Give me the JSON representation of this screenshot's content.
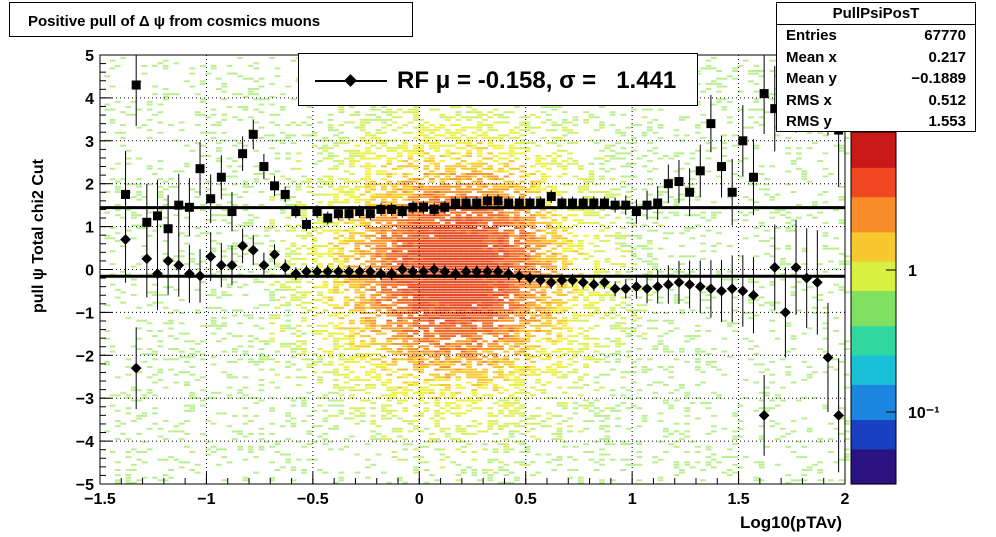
{
  "title": "Positive pull of Δ ψ from cosmics muons",
  "stats": {
    "name": "PullPsiPosT",
    "rows": [
      {
        "label": "Entries",
        "value": "67770"
      },
      {
        "label": "Mean x",
        "value": "0.217"
      },
      {
        "label": "Mean y",
        "value": "−0.1889"
      },
      {
        "label": "RMS x",
        "value": "0.512"
      },
      {
        "label": "RMS y",
        "value": "1.553"
      }
    ]
  },
  "legend": {
    "text": "RF μ = -0.158, σ =   1.441"
  },
  "chart_data": {
    "type": "scatter",
    "xlabel": "Log10(pTAv)",
    "ylabel": "pull ψ    Total chi2 Cut",
    "xlim": [
      -1.5,
      2
    ],
    "ylim": [
      -5,
      5
    ],
    "x_ticks": [
      "−1.5",
      "−1",
      "−0.5",
      "0",
      "0.5",
      "1",
      "1.5",
      "2"
    ],
    "y_ticks": [
      "−5",
      "−4",
      "−3",
      "−2",
      "−1",
      "0",
      "1",
      "2",
      "3",
      "4",
      "5"
    ],
    "z_ticks": [
      "10⁻¹",
      "1"
    ],
    "grid": true,
    "fit_lines": [
      {
        "name": "sigma",
        "y": 1.441
      },
      {
        "name": "mean",
        "y": -0.158
      }
    ],
    "series": [
      {
        "name": "sigma",
        "marker": "square",
        "x": [
          -1.38,
          -1.33,
          -1.28,
          -1.23,
          -1.18,
          -1.13,
          -1.08,
          -1.03,
          -0.98,
          -0.93,
          -0.88,
          -0.83,
          -0.78,
          -0.73,
          -0.68,
          -0.63,
          -0.58,
          -0.53,
          -0.48,
          -0.43,
          -0.38,
          -0.33,
          -0.28,
          -0.23,
          -0.18,
          -0.13,
          -0.08,
          -0.03,
          0.02,
          0.07,
          0.12,
          0.17,
          0.22,
          0.27,
          0.32,
          0.37,
          0.42,
          0.47,
          0.52,
          0.57,
          0.62,
          0.67,
          0.72,
          0.77,
          0.82,
          0.87,
          0.92,
          0.97,
          1.02,
          1.07,
          1.12,
          1.17,
          1.22,
          1.27,
          1.32,
          1.37,
          1.42,
          1.47,
          1.52,
          1.57,
          1.62,
          1.67,
          1.72,
          1.77,
          1.82,
          1.87,
          1.92,
          1.97
        ],
        "y": [
          1.75,
          4.3,
          1.1,
          1.25,
          0.95,
          1.5,
          1.45,
          2.35,
          1.65,
          2.15,
          1.35,
          2.7,
          3.15,
          2.4,
          1.95,
          1.75,
          1.35,
          1.05,
          1.35,
          1.2,
          1.3,
          1.3,
          1.35,
          1.3,
          1.4,
          1.4,
          1.35,
          1.45,
          1.45,
          1.4,
          1.45,
          1.55,
          1.55,
          1.55,
          1.6,
          1.6,
          1.55,
          1.55,
          1.55,
          1.55,
          1.7,
          1.55,
          1.55,
          1.55,
          1.55,
          1.55,
          1.5,
          1.5,
          1.35,
          1.5,
          1.55,
          2.0,
          2.05,
          1.8,
          2.3,
          3.4,
          2.4,
          1.8,
          3.0,
          2.15,
          4.1,
          3.75,
          4.7,
          4.3,
          4.5,
          4.55,
          4.4,
          3.25
        ]
      },
      {
        "name": "mean",
        "marker": "diamond",
        "x": [
          -1.38,
          -1.33,
          -1.28,
          -1.23,
          -1.18,
          -1.13,
          -1.08,
          -1.03,
          -0.98,
          -0.93,
          -0.88,
          -0.83,
          -0.78,
          -0.73,
          -0.68,
          -0.63,
          -0.58,
          -0.53,
          -0.48,
          -0.43,
          -0.38,
          -0.33,
          -0.28,
          -0.23,
          -0.18,
          -0.13,
          -0.08,
          -0.03,
          0.02,
          0.07,
          0.12,
          0.17,
          0.22,
          0.27,
          0.32,
          0.37,
          0.42,
          0.47,
          0.52,
          0.57,
          0.62,
          0.67,
          0.72,
          0.77,
          0.82,
          0.87,
          0.92,
          0.97,
          1.02,
          1.07,
          1.12,
          1.17,
          1.22,
          1.27,
          1.32,
          1.37,
          1.42,
          1.47,
          1.52,
          1.57,
          1.62,
          1.67,
          1.72,
          1.77,
          1.82,
          1.87,
          1.92,
          1.97
        ],
        "y": [
          0.7,
          -2.3,
          0.25,
          -0.1,
          0.2,
          0.1,
          -0.1,
          -0.15,
          0.3,
          0.1,
          0.1,
          0.55,
          0.45,
          0.1,
          0.35,
          0.05,
          -0.1,
          -0.05,
          -0.05,
          -0.05,
          -0.05,
          -0.05,
          -0.05,
          -0.05,
          -0.1,
          -0.1,
          0.0,
          -0.05,
          -0.05,
          0.0,
          -0.05,
          -0.1,
          -0.05,
          -0.05,
          -0.05,
          -0.05,
          -0.1,
          -0.15,
          -0.2,
          -0.25,
          -0.3,
          -0.25,
          -0.25,
          -0.3,
          -0.35,
          -0.3,
          -0.45,
          -0.45,
          -0.4,
          -0.45,
          -0.4,
          -0.35,
          -0.3,
          -0.35,
          -0.4,
          -0.45,
          -0.5,
          -0.45,
          -0.5,
          -0.6,
          -3.4,
          0.05,
          -1.0,
          0.05,
          -0.2,
          -0.3,
          -2.05,
          -3.4
        ]
      }
    ]
  }
}
